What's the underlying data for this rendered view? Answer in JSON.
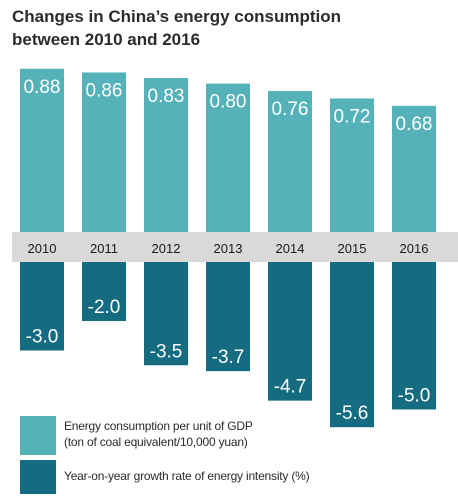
{
  "chart_data": {
    "type": "bar",
    "title_line1": "Changes in China’s energy consumption",
    "title_line2": "between 2010 and 2016",
    "categories": [
      "2010",
      "2011",
      "2012",
      "2013",
      "2014",
      "2015",
      "2016"
    ],
    "series": [
      {
        "name": "Energy consumption per unit of GDP (ton of coal equivalent/10,000 yuan)",
        "label_line1": "Energy consumption per unit of GDP",
        "label_line2": "(ton of coal equivalent/10,000 yuan)",
        "color": "#55b2b8",
        "values": [
          0.88,
          0.86,
          0.83,
          0.8,
          0.76,
          0.72,
          0.68
        ],
        "labels": [
          "0.88",
          "0.86",
          "0.83",
          "0.80",
          "0.76",
          "0.72",
          "0.68"
        ]
      },
      {
        "name": "Year-on-year growth rate of energy intensity (%)",
        "label_line1": "Year-on-year growth rate of energy intensity (%)",
        "color": "#156c80",
        "values": [
          -3.0,
          -2.0,
          -3.5,
          -3.7,
          -4.7,
          -5.6,
          -5.0
        ],
        "labels": [
          "-3.0",
          "-2.0",
          "-3.5",
          "-3.7",
          "-4.7",
          "-5.6",
          "-5.0"
        ]
      }
    ],
    "axis_band_color": "#d9d9d9"
  }
}
